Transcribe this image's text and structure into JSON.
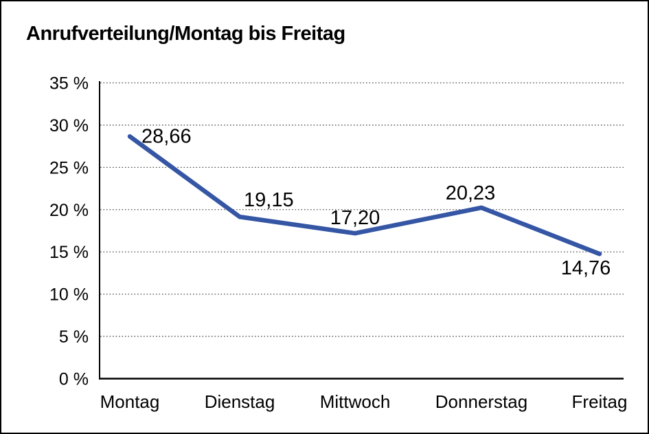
{
  "title": "Anrufverteilung/Montag bis Freitag",
  "chart_data": {
    "type": "line",
    "title": "Anrufverteilung/Montag bis Freitag",
    "categories": [
      "Montag",
      "Dienstag",
      "Mittwoch",
      "Donnerstag",
      "Freitag"
    ],
    "values": [
      28.66,
      19.15,
      17.2,
      20.23,
      14.76
    ],
    "point_labels": [
      "28,66",
      "19,15",
      "17,20",
      "20,23",
      "14,76"
    ],
    "series_name": "Anrufverteilung",
    "xlabel": "",
    "ylabel": "",
    "unit": "%",
    "ylim": [
      0,
      35
    ],
    "y_ticks": [
      {
        "value": 35,
        "label": "35 %"
      },
      {
        "value": 30,
        "label": "30 %"
      },
      {
        "value": 25,
        "label": "25 %"
      },
      {
        "value": 20,
        "label": "20 %"
      },
      {
        "value": 15,
        "label": "15 %"
      },
      {
        "value": 10,
        "label": "10 %"
      },
      {
        "value": 5,
        "label": "5 %"
      },
      {
        "value": 0,
        "label": "0 %"
      }
    ],
    "grid": "horizontal-dotted",
    "legend": "none",
    "colors": {
      "line": "#3556A4",
      "grid_dots": "#4d4d4d",
      "axis": "#000000",
      "text": "#000000",
      "background": "#ffffff",
      "border": "#000000"
    }
  }
}
